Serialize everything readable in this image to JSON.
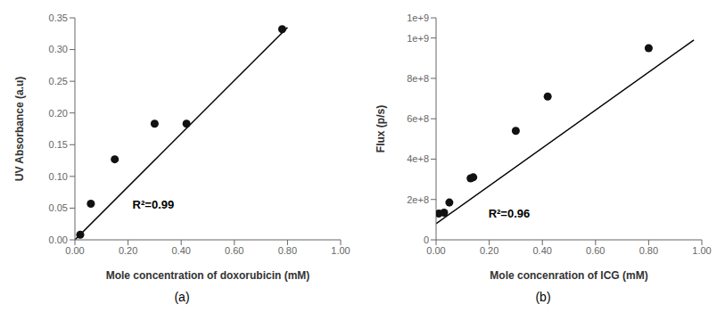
{
  "chart_data": [
    {
      "type": "scatter",
      "title": "(a)",
      "x_label": "Mole concentration of doxorubicin (mM)",
      "y_label": "UV Absorbance (a.u)",
      "xlim": [
        0.0,
        1.0
      ],
      "ylim": [
        0.0,
        0.35
      ],
      "xticks": [
        {
          "value": 0.0,
          "label": "0.00"
        },
        {
          "value": 0.2,
          "label": "0.20"
        },
        {
          "value": 0.4,
          "label": "0.40"
        },
        {
          "value": 0.6,
          "label": "0.60"
        },
        {
          "value": 0.8,
          "label": "0.80"
        },
        {
          "value": 1.0,
          "label": "1.00"
        }
      ],
      "yticks": [
        {
          "value": 0.0,
          "label": "0.00"
        },
        0.05,
        {
          "value": 0.1,
          "label": "0.10"
        },
        0.15,
        {
          "value": 0.2,
          "label": "0.20"
        },
        0.25,
        {
          "value": 0.3,
          "label": "0.30"
        },
        0.35
      ],
      "series": [
        {
          "type": "line",
          "color": "#000000",
          "x": [
            0.0,
            0.8
          ],
          "values": [
            0.0,
            0.335
          ]
        },
        {
          "type": "scatter",
          "color": "#111111",
          "x": [
            0.02,
            0.06,
            0.15,
            0.3,
            0.42,
            0.78
          ],
          "values": [
            0.008,
            0.057,
            0.127,
            0.183,
            0.183,
            0.332
          ]
        }
      ],
      "annotations": [
        {
          "text": "R²=0.99",
          "x": 0.2,
          "y": 0.055
        }
      ]
    },
    {
      "type": "scatter",
      "title": "(b)",
      "x_label": "Mole concenration of ICG (mM)",
      "y_label": "Flux (p/s)",
      "xlim": [
        0.0,
        1.0
      ],
      "ylim": [
        0,
        1100000000
      ],
      "xticks": [
        {
          "value": 0.0,
          "label": "0.00"
        },
        {
          "value": 0.2,
          "label": "0.20"
        },
        {
          "value": 0.4,
          "label": "0.40"
        },
        {
          "value": 0.6,
          "label": "0.60"
        },
        {
          "value": 0.8,
          "label": "0.80"
        },
        {
          "value": 1.0,
          "label": "1.00"
        }
      ],
      "yticks": [
        0,
        {
          "value": 200000000,
          "label": "2e+8"
        },
        {
          "value": 400000000,
          "label": "4e+8"
        },
        {
          "value": 600000000,
          "label": "6e+8"
        },
        {
          "value": 800000000,
          "label": "8e+8"
        },
        {
          "value": 1000000000,
          "label": "1e+9"
        },
        {
          "value": 1100000000,
          "label": "1e+9"
        }
      ],
      "series": [
        {
          "type": "line",
          "color": "#000000",
          "x": [
            0.0,
            0.97
          ],
          "values": [
            80000000,
            990000000
          ]
        },
        {
          "type": "scatter",
          "color": "#111111",
          "x": [
            0.01,
            0.03,
            0.05,
            0.13,
            0.14,
            0.3,
            0.42,
            0.8
          ],
          "values": [
            130000000,
            135000000,
            185000000,
            305000000,
            310000000,
            540000000,
            710000000,
            950000000
          ]
        }
      ],
      "annotations": [
        {
          "text": "R²=0.96",
          "x": 0.18,
          "y": 130000000
        }
      ]
    }
  ]
}
